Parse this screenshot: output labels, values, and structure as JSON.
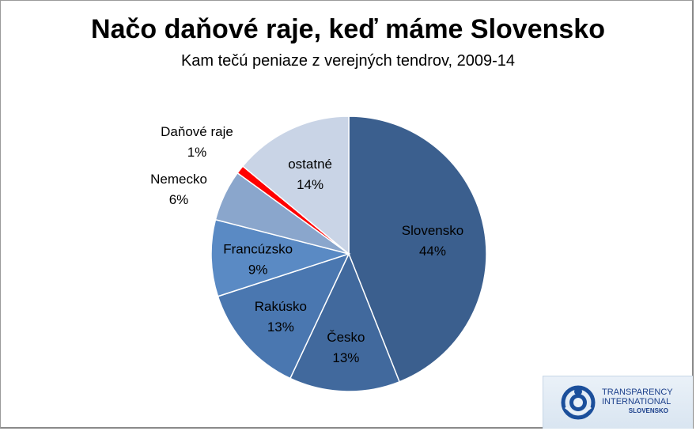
{
  "chart_data": {
    "type": "pie",
    "title": "Načo daňové raje, keď máme Slovensko",
    "subtitle": "Kam tečú peniaze z verejných tendrov, 2009-14",
    "start_angle_deg": 0,
    "direction": "clockwise",
    "slices": [
      {
        "label": "Slovensko",
        "value": 44,
        "value_label": "44%",
        "color": "#3b5f8e",
        "label_side": "inside"
      },
      {
        "label": "Česko",
        "value": 13,
        "value_label": "13%",
        "color": "#41699d",
        "label_side": "inside"
      },
      {
        "label": "Rakúsko",
        "value": 13,
        "value_label": "13%",
        "color": "#4a77b0",
        "label_side": "inside"
      },
      {
        "label": "Francúzsko",
        "value": 9,
        "value_label": "9%",
        "color": "#5a8ac4",
        "label_side": "inside"
      },
      {
        "label": "Nemecko",
        "value": 6,
        "value_label": "6%",
        "color": "#8aa6cc",
        "label_side": "outside"
      },
      {
        "label": "Daňové raje",
        "value": 1,
        "value_label": "1%",
        "color": "#ff0000",
        "label_side": "outside"
      },
      {
        "label": "ostatné",
        "value": 14,
        "value_label": "14%",
        "color": "#c9d4e6",
        "label_side": "inside"
      }
    ]
  },
  "logo": {
    "line1": "TRANSPARENCY",
    "line2": "INTERNATIONAL",
    "line3": "SLOVENSKO"
  }
}
